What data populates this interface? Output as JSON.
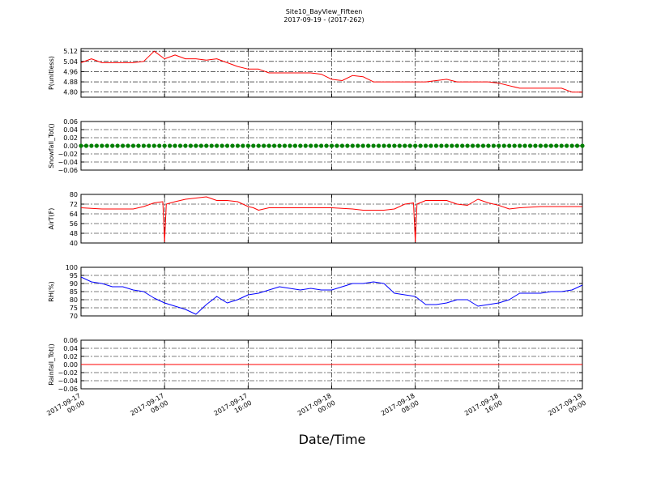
{
  "figure": {
    "title": "Site10_BayView_Fifteen",
    "subtitle": "2017-09-19 - (2017-262)",
    "xlabel": "Date/Time"
  },
  "colors": {
    "red": "#ff0000",
    "green": "#008000",
    "blue": "#0000ff",
    "axis": "#000000"
  },
  "chart_data": [
    {
      "type": "line",
      "ylabel": "P(unitless)",
      "ylim": [
        4.76,
        5.14
      ],
      "yticks": [
        "5.12",
        "5.04",
        "4.96",
        "4.88",
        "4.80"
      ],
      "yticks_values": [
        5.12,
        5.04,
        4.96,
        4.88,
        4.8
      ],
      "grid": true,
      "series": [
        {
          "color": "#ff0000",
          "x": [
            "2017-09-17 00:00",
            "2017-09-17 01:00",
            "2017-09-17 02:00",
            "2017-09-17 03:00",
            "2017-09-17 04:00",
            "2017-09-17 05:00",
            "2017-09-17 06:00",
            "2017-09-17 07:00",
            "2017-09-17 08:00",
            "2017-09-17 09:00",
            "2017-09-17 10:00",
            "2017-09-17 11:00",
            "2017-09-17 12:00",
            "2017-09-17 13:00",
            "2017-09-17 14:00",
            "2017-09-17 15:00",
            "2017-09-17 16:00",
            "2017-09-17 17:00",
            "2017-09-17 18:00",
            "2017-09-17 19:00",
            "2017-09-17 20:00",
            "2017-09-17 21:00",
            "2017-09-17 22:00",
            "2017-09-17 23:00",
            "2017-09-18 00:00",
            "2017-09-18 01:00",
            "2017-09-18 02:00",
            "2017-09-18 03:00",
            "2017-09-18 04:00",
            "2017-09-18 05:00",
            "2017-09-18 06:00",
            "2017-09-18 07:00",
            "2017-09-18 08:00",
            "2017-09-18 09:00",
            "2017-09-18 10:00",
            "2017-09-18 11:00",
            "2017-09-18 12:00",
            "2017-09-18 13:00",
            "2017-09-18 14:00",
            "2017-09-18 15:00",
            "2017-09-18 16:00",
            "2017-09-18 17:00",
            "2017-09-18 18:00",
            "2017-09-18 19:00",
            "2017-09-18 20:00",
            "2017-09-18 21:00",
            "2017-09-18 22:00",
            "2017-09-18 23:00",
            "2017-09-19 00:00"
          ],
          "y": [
            5.03,
            5.06,
            5.03,
            5.03,
            5.03,
            5.03,
            5.04,
            5.12,
            5.06,
            5.09,
            5.06,
            5.06,
            5.05,
            5.06,
            5.03,
            5.0,
            4.98,
            4.98,
            4.95,
            4.95,
            4.95,
            4.95,
            4.95,
            4.94,
            4.9,
            4.89,
            4.93,
            4.92,
            4.88,
            4.88,
            4.88,
            4.88,
            4.88,
            4.88,
            4.89,
            4.9,
            4.88,
            4.88,
            4.88,
            4.88,
            4.87,
            4.85,
            4.83,
            4.83,
            4.83,
            4.83,
            4.83,
            4.8,
            4.8
          ]
        }
      ]
    },
    {
      "type": "scatter",
      "ylabel": "Snowfall_Tot()",
      "ylim": [
        -0.06,
        0.06
      ],
      "yticks": [
        "0.06",
        "0.04",
        "0.02",
        "0.00",
        "−0.02",
        "−0.04",
        "−0.06"
      ],
      "yticks_values": [
        0.06,
        0.04,
        0.02,
        0.0,
        -0.02,
        -0.04,
        -0.06
      ],
      "grid": true,
      "series": [
        {
          "color": "#008000",
          "x_range": [
            "2017-09-17 00:00",
            "2017-09-19 00:00"
          ],
          "y": 0.0
        }
      ]
    },
    {
      "type": "line",
      "ylabel": "AirT(F)",
      "ylim": [
        40,
        80
      ],
      "yticks": [
        "80",
        "72",
        "64",
        "56",
        "48",
        "40"
      ],
      "yticks_values": [
        80,
        72,
        64,
        56,
        48,
        40
      ],
      "grid": true,
      "series": [
        {
          "color": "#ff0000",
          "x": [
            "2017-09-17 00:00",
            "2017-09-17 02:00",
            "2017-09-17 04:00",
            "2017-09-17 05:00",
            "2017-09-17 06:00",
            "2017-09-17 07:00",
            "2017-09-17 07:50",
            "2017-09-17 08:00",
            "2017-09-17 08:10",
            "2017-09-17 09:00",
            "2017-09-17 10:00",
            "2017-09-17 11:00",
            "2017-09-17 12:00",
            "2017-09-17 13:00",
            "2017-09-17 14:00",
            "2017-09-17 15:00",
            "2017-09-17 16:00",
            "2017-09-17 16:30",
            "2017-09-17 17:00",
            "2017-09-17 18:00",
            "2017-09-17 20:00",
            "2017-09-17 22:00",
            "2017-09-18 00:00",
            "2017-09-18 02:00",
            "2017-09-18 03:00",
            "2017-09-18 04:00",
            "2017-09-18 05:00",
            "2017-09-18 06:00",
            "2017-09-18 07:00",
            "2017-09-18 07:50",
            "2017-09-18 08:00",
            "2017-09-18 08:10",
            "2017-09-18 09:00",
            "2017-09-18 10:00",
            "2017-09-18 11:00",
            "2017-09-18 12:00",
            "2017-09-18 13:00",
            "2017-09-18 14:00",
            "2017-09-18 15:00",
            "2017-09-18 16:00",
            "2017-09-18 17:00",
            "2017-09-18 18:00",
            "2017-09-18 20:00",
            "2017-09-18 22:00",
            "2017-09-19 00:00"
          ],
          "y": [
            69,
            68,
            68,
            68,
            70,
            73,
            74,
            41,
            72,
            74,
            76,
            77,
            78,
            75,
            75,
            74,
            70,
            69,
            67,
            69,
            69,
            69,
            69,
            68,
            67,
            67,
            67,
            68,
            72,
            73,
            41,
            72,
            75,
            75,
            75,
            72,
            71,
            76,
            73,
            71,
            68,
            69,
            70,
            70,
            70
          ]
        }
      ]
    },
    {
      "type": "line",
      "ylabel": "RH(%)",
      "ylim": [
        70,
        100
      ],
      "yticks": [
        "100",
        "95",
        "90",
        "85",
        "80",
        "75",
        "70"
      ],
      "yticks_values": [
        100,
        95,
        90,
        85,
        80,
        75,
        70
      ],
      "grid": true,
      "series": [
        {
          "color": "#0000ff",
          "x": [
            "2017-09-17 00:00",
            "2017-09-17 01:00",
            "2017-09-17 02:00",
            "2017-09-17 03:00",
            "2017-09-17 04:00",
            "2017-09-17 05:00",
            "2017-09-17 06:00",
            "2017-09-17 07:00",
            "2017-09-17 08:00",
            "2017-09-17 09:00",
            "2017-09-17 10:00",
            "2017-09-17 11:00",
            "2017-09-17 12:00",
            "2017-09-17 13:00",
            "2017-09-17 14:00",
            "2017-09-17 15:00",
            "2017-09-17 16:00",
            "2017-09-17 17:00",
            "2017-09-17 18:00",
            "2017-09-17 19:00",
            "2017-09-17 20:00",
            "2017-09-17 21:00",
            "2017-09-17 22:00",
            "2017-09-17 23:00",
            "2017-09-18 00:00",
            "2017-09-18 01:00",
            "2017-09-18 02:00",
            "2017-09-18 03:00",
            "2017-09-18 04:00",
            "2017-09-18 05:00",
            "2017-09-18 06:00",
            "2017-09-18 07:00",
            "2017-09-18 08:00",
            "2017-09-18 09:00",
            "2017-09-18 10:00",
            "2017-09-18 11:00",
            "2017-09-18 12:00",
            "2017-09-18 13:00",
            "2017-09-18 14:00",
            "2017-09-18 15:00",
            "2017-09-18 16:00",
            "2017-09-18 17:00",
            "2017-09-18 18:00",
            "2017-09-18 19:00",
            "2017-09-18 20:00",
            "2017-09-18 21:00",
            "2017-09-18 22:00",
            "2017-09-18 23:00",
            "2017-09-19 00:00"
          ],
          "y": [
            94,
            91,
            90,
            88,
            88,
            86,
            85,
            81,
            78,
            76,
            74,
            71,
            77,
            82,
            78,
            80,
            83,
            84,
            86,
            88,
            87,
            86,
            87,
            86,
            86,
            88,
            90,
            90,
            91,
            90,
            84,
            83,
            82,
            77,
            77,
            78,
            80,
            80,
            76,
            77,
            78,
            80,
            84,
            84,
            84,
            85,
            85,
            86,
            89
          ]
        }
      ]
    },
    {
      "type": "line",
      "ylabel": "Rainfall_Tot()",
      "ylim": [
        -0.06,
        0.06
      ],
      "yticks": [
        "0.06",
        "0.04",
        "0.02",
        "0.00",
        "−0.02",
        "−0.04",
        "−0.06"
      ],
      "yticks_values": [
        0.06,
        0.04,
        0.02,
        0.0,
        -0.02,
        -0.04,
        -0.06
      ],
      "grid": true,
      "series": [
        {
          "color": "#ff0000",
          "x": [
            "2017-09-17 00:00",
            "2017-09-19 00:00"
          ],
          "y": [
            0.0,
            0.0
          ]
        }
      ]
    }
  ],
  "xaxis": {
    "range": [
      "2017-09-17 00:00",
      "2017-09-19 00:00"
    ],
    "ticks": [
      {
        "t": "2017-09-17 00:00",
        "line1": "2017-09-17",
        "line2": "00:00"
      },
      {
        "t": "2017-09-17 08:00",
        "line1": "2017-09-17",
        "line2": "08:00"
      },
      {
        "t": "2017-09-17 16:00",
        "line1": "2017-09-17",
        "line2": "16:00"
      },
      {
        "t": "2017-09-18 00:00",
        "line1": "2017-09-18",
        "line2": "00:00"
      },
      {
        "t": "2017-09-18 08:00",
        "line1": "2017-09-18",
        "line2": "08:00"
      },
      {
        "t": "2017-09-18 16:00",
        "line1": "2017-09-18",
        "line2": "16:00"
      },
      {
        "t": "2017-09-19 00:00",
        "line1": "2017-09-19",
        "line2": "00:00"
      }
    ]
  }
}
